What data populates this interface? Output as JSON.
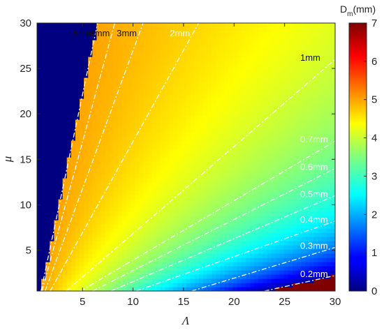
{
  "chart_data": {
    "type": "heatmap",
    "xlabel": "Λ",
    "ylabel": "μ",
    "xlim": [
      0.5,
      30
    ],
    "ylim": [
      0.5,
      30
    ],
    "xticks": [
      5,
      10,
      15,
      20,
      25,
      30
    ],
    "yticks": [
      5,
      10,
      15,
      20,
      25,
      30
    ],
    "colorbar": {
      "label_main": "D",
      "label_sub": "m",
      "label_unit": "(mm)",
      "range": [
        0,
        7
      ],
      "ticks": [
        0,
        1,
        2,
        3,
        4,
        5,
        6,
        7
      ],
      "colormap": "jet"
    },
    "contours": [
      {
        "label": "5mm",
        "value": 5,
        "x_at_top": 6.5,
        "x_at_bottom": 0.9
      },
      {
        "label": "4mm",
        "value": 4,
        "x_at_top": 8.2,
        "x_at_bottom": 1.0
      },
      {
        "label": "3mm",
        "value": 3,
        "x_at_top": 11.0,
        "x_at_bottom": 1.3
      },
      {
        "label": "2mm",
        "value": 2,
        "x_at_top": 16.5,
        "x_at_bottom": 1.8
      },
      {
        "label": "1mm",
        "value": 1,
        "y_at_right": 26.0,
        "x_at_bottom": 3.4
      },
      {
        "label": "0.7mm",
        "value": 0.7,
        "y_at_right": 17.0,
        "x_at_bottom": 4.8
      },
      {
        "label": "0.6mm",
        "value": 0.6,
        "y_at_right": 14.0,
        "x_at_bottom": 6.0
      },
      {
        "label": "0.5mm",
        "value": 0.5,
        "y_at_right": 11.0,
        "x_at_bottom": 7.8
      },
      {
        "label": "0.4mm",
        "value": 0.4,
        "y_at_right": 8.2,
        "x_at_bottom": 10.3
      },
      {
        "label": "0.3mm",
        "value": 0.3,
        "y_at_right": 5.3,
        "x_at_bottom": 15.8
      },
      {
        "label": "0.2mm",
        "value": 0.2,
        "y_at_right": 2.2,
        "x_at_bottom": 23.0
      }
    ]
  }
}
